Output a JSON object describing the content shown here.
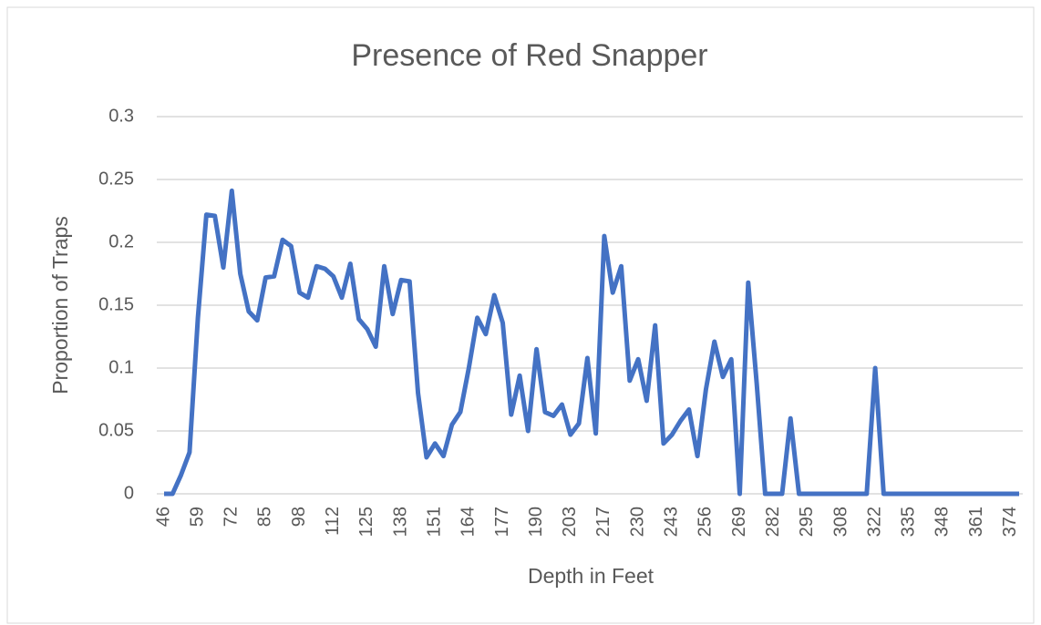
{
  "chart_data": {
    "type": "line",
    "title": "Presence of Red Snapper",
    "x_label": "Depth in Feet",
    "y_label": "Proportion of Traps",
    "categories": [
      46,
      null,
      null,
      null,
      59,
      null,
      null,
      null,
      72,
      null,
      null,
      null,
      85,
      null,
      null,
      null,
      98,
      null,
      null,
      null,
      112,
      null,
      null,
      null,
      125,
      null,
      null,
      null,
      138,
      null,
      null,
      null,
      151,
      null,
      null,
      null,
      164,
      null,
      null,
      null,
      177,
      null,
      null,
      null,
      190,
      null,
      null,
      null,
      203,
      null,
      null,
      null,
      217,
      null,
      null,
      null,
      230,
      null,
      null,
      null,
      243,
      null,
      null,
      null,
      256,
      null,
      null,
      null,
      269,
      null,
      null,
      null,
      282,
      null,
      null,
      null,
      295,
      null,
      null,
      null,
      308,
      null,
      null,
      null,
      322,
      null,
      null,
      null,
      335,
      null,
      null,
      null,
      348,
      null,
      null,
      null,
      361,
      null,
      null,
      null,
      374,
      null
    ],
    "series": [
      {
        "color": "#4472c4",
        "values": [
          0,
          0,
          0.015,
          0.033,
          0.14,
          0.222,
          0.221,
          0.18,
          0.241,
          0.175,
          0.145,
          0.138,
          0.172,
          0.173,
          0.202,
          0.197,
          0.16,
          0.156,
          0.181,
          0.179,
          0.173,
          0.156,
          0.183,
          0.139,
          0.131,
          0.117,
          0.181,
          0.143,
          0.17,
          0.169,
          0.08,
          0.029,
          0.04,
          0.03,
          0.055,
          0.065,
          0.1,
          0.14,
          0.127,
          0.158,
          0.136,
          0.063,
          0.094,
          0.05,
          0.115,
          0.065,
          0.062,
          0.071,
          0.047,
          0.056,
          0.108,
          0.048,
          0.205,
          0.16,
          0.181,
          0.09,
          0.107,
          0.074,
          0.134,
          0.04,
          0.047,
          0.058,
          0.067,
          0.03,
          0.083,
          0.121,
          0.093,
          0.107,
          0,
          0.168,
          0.088,
          0,
          0,
          0,
          0.06,
          0,
          0,
          0,
          0,
          0,
          0,
          0,
          0,
          0,
          0.1,
          0,
          0,
          0,
          0,
          0,
          0,
          0,
          0,
          0,
          0,
          0,
          0,
          0,
          0,
          0,
          0,
          0
        ]
      }
    ],
    "ylim": [
      0,
      0.3
    ],
    "yticks": [
      0,
      0.05,
      0.1,
      0.15,
      0.2,
      0.25,
      0.3
    ],
    "grid": true
  }
}
